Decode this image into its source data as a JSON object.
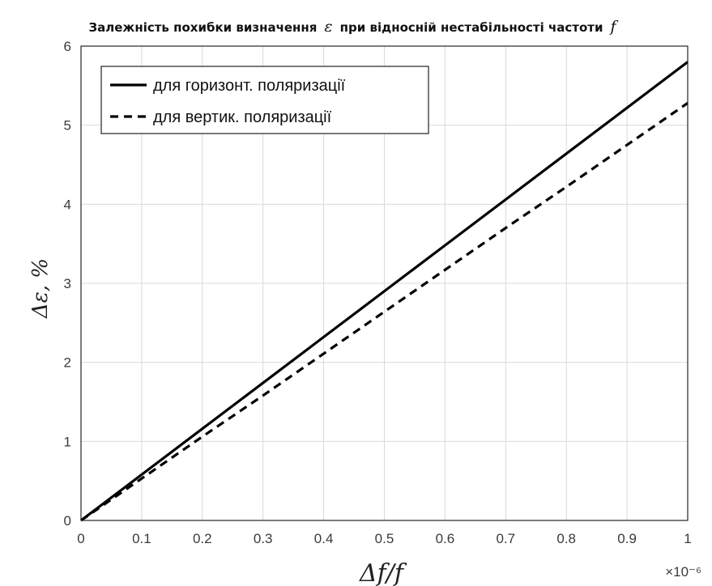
{
  "title": {
    "part1": "Залежність похибки визначення",
    "symbol": "ε",
    "part2": "при відносній нестабільності частоти",
    "symbol2": "f"
  },
  "chart_data": {
    "type": "line",
    "title": "Залежність похибки визначення ε при відносній нестабільності частоти f",
    "xlabel": "Δf/f",
    "ylabel": "Δε, %",
    "x_multiplier": "×10⁻⁶",
    "xlim": [
      0,
      1
    ],
    "ylim": [
      0,
      6
    ],
    "x_ticks": [
      0,
      0.1,
      0.2,
      0.3,
      0.4,
      0.5,
      0.6,
      0.7,
      0.8,
      0.9,
      1
    ],
    "x_tick_labels": [
      "0",
      "0.1",
      "0.2",
      "0.3",
      "0.4",
      "0.5",
      "0.6",
      "0.7",
      "0.8",
      "0.9",
      "1"
    ],
    "y_ticks": [
      0,
      1,
      2,
      3,
      4,
      5,
      6
    ],
    "y_tick_labels": [
      "0",
      "1",
      "2",
      "3",
      "4",
      "5",
      "6"
    ],
    "grid": true,
    "legend_position": "top-left",
    "series": [
      {
        "name": "для горизонт. поляризації",
        "style": "solid",
        "color": "#000000",
        "x": [
          0,
          0.1,
          0.2,
          0.3,
          0.4,
          0.5,
          0.6,
          0.7,
          0.8,
          0.9,
          1
        ],
        "y": [
          0,
          0.58,
          1.16,
          1.74,
          2.32,
          2.9,
          3.48,
          4.06,
          4.64,
          5.22,
          5.8
        ]
      },
      {
        "name": "для вертик. поляризації",
        "style": "dashed",
        "color": "#000000",
        "x": [
          0,
          0.1,
          0.2,
          0.3,
          0.4,
          0.5,
          0.6,
          0.7,
          0.8,
          0.9,
          1
        ],
        "y": [
          0,
          0.53,
          1.06,
          1.58,
          2.11,
          2.64,
          3.17,
          3.7,
          4.22,
          4.75,
          5.28
        ]
      }
    ]
  }
}
